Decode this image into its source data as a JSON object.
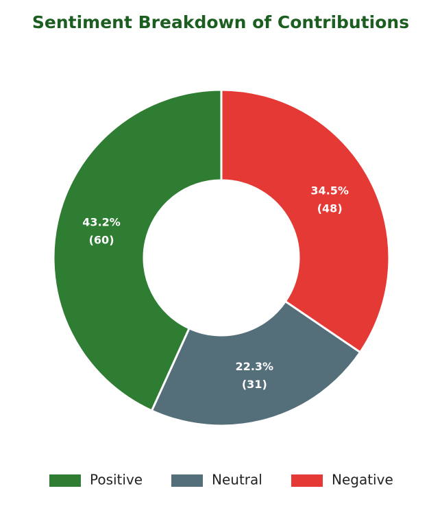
{
  "chart_data": {
    "type": "donut",
    "title": "Sentiment Breakdown of Contributions",
    "categories": [
      "Positive",
      "Neutral",
      "Negative"
    ],
    "values": [
      43.2,
      22.3,
      34.5
    ],
    "value_labels": [
      "43.2%",
      "22.3%",
      "34.5%"
    ],
    "counts": [
      60,
      31,
      48
    ],
    "count_labels": [
      "(60)",
      "(31)",
      "(48)"
    ],
    "colors": [
      "#2e7d32",
      "#546e7a",
      "#e53935"
    ],
    "legend": "bottom"
  }
}
